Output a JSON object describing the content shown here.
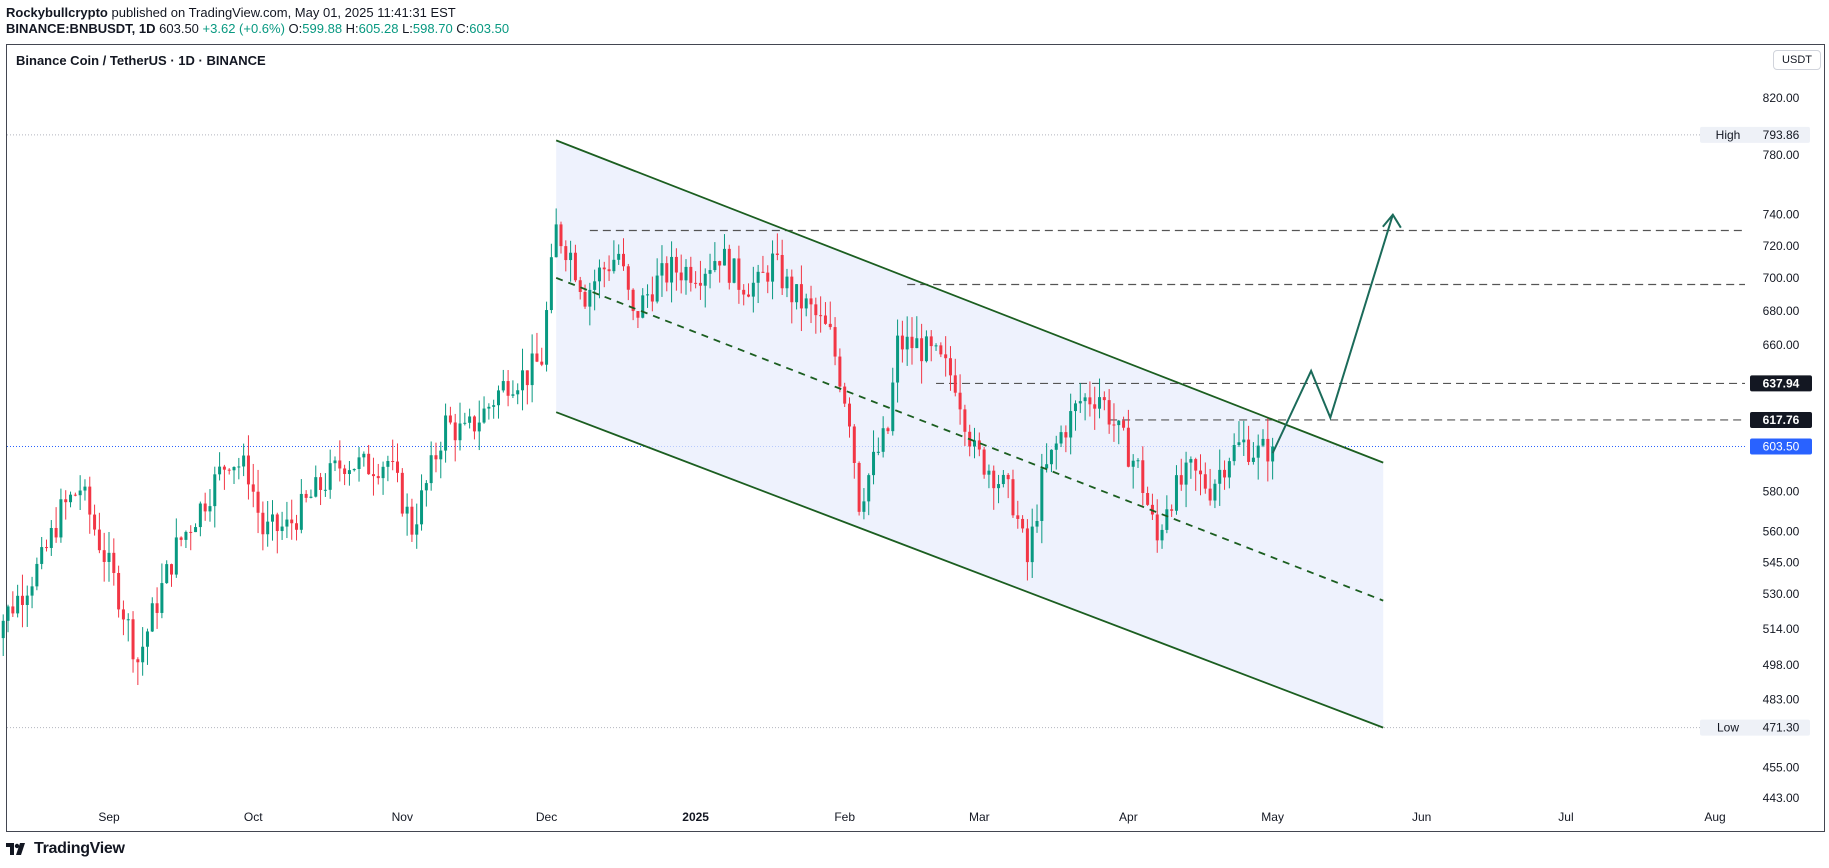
{
  "header": {
    "author": "Rockybullcrypto",
    "published_text": "published on TradingView.com, May 01, 2025 11:41:31 EST",
    "symbol_line": "BINANCE:BNBUSDT, 1D",
    "last": "603.50",
    "change": "+3.62 (+0.6%)",
    "ohlc": {
      "O": "599.88",
      "H": "605.28",
      "L": "598.70",
      "C": "603.50"
    }
  },
  "chart_title": "Binance Coin / TetherUS · 1D · BINANCE",
  "unit_badge": "USDT",
  "footer": {
    "brand": "TradingView"
  },
  "colors": {
    "up": "#089981",
    "down": "#f23645",
    "channel": "#1b5e20",
    "arrow": "#1b6b5a",
    "fill": "#e8eefc",
    "price": "#2962ff"
  },
  "chart_data": {
    "type": "candlestick",
    "y_axis": {
      "scale": "log",
      "min": 435,
      "max": 840,
      "ticks": [
        "820.00",
        "780.00",
        "740.00",
        "720.00",
        "700.00",
        "680.00",
        "660.00",
        "637.94",
        "617.76",
        "603.50",
        "580.00",
        "560.00",
        "545.00",
        "530.00",
        "514.00",
        "498.00",
        "483.00",
        "471.30",
        "455.00",
        "443.00"
      ]
    },
    "x_axis": {
      "ticks": [
        {
          "label": "Sep",
          "date": "2024-09-01"
        },
        {
          "label": "Oct",
          "date": "2024-10-01"
        },
        {
          "label": "Nov",
          "date": "2024-11-01"
        },
        {
          "label": "Dec",
          "date": "2024-12-01"
        },
        {
          "label": "2025",
          "date": "2025-01-01"
        },
        {
          "label": "Feb",
          "date": "2025-02-01"
        },
        {
          "label": "Mar",
          "date": "2025-03-01"
        },
        {
          "label": "Apr",
          "date": "2025-04-01"
        },
        {
          "label": "May",
          "date": "2025-05-01"
        },
        {
          "label": "Jun",
          "date": "2025-06-01"
        },
        {
          "label": "Jul",
          "date": "2025-07-01"
        },
        {
          "label": "Aug",
          "date": "2025-08-01"
        }
      ]
    },
    "series_points": [
      [
        "2024-08-07",
        510
      ],
      [
        "2024-08-12",
        525
      ],
      [
        "2024-08-18",
        545
      ],
      [
        "2024-08-22",
        570
      ],
      [
        "2024-08-26",
        582
      ],
      [
        "2024-08-30",
        555
      ],
      [
        "2024-09-03",
        530
      ],
      [
        "2024-09-07",
        500
      ],
      [
        "2024-09-10",
        520
      ],
      [
        "2024-09-15",
        552
      ],
      [
        "2024-09-20",
        572
      ],
      [
        "2024-09-26",
        598
      ],
      [
        "2024-09-30",
        590
      ],
      [
        "2024-10-03",
        560
      ],
      [
        "2024-10-08",
        562
      ],
      [
        "2024-10-14",
        580
      ],
      [
        "2024-10-20",
        596
      ],
      [
        "2024-10-24",
        593
      ],
      [
        "2024-10-29",
        596
      ],
      [
        "2024-11-03",
        562
      ],
      [
        "2024-11-06",
        583
      ],
      [
        "2024-11-10",
        616
      ],
      [
        "2024-11-14",
        610
      ],
      [
        "2024-11-18",
        622
      ],
      [
        "2024-11-23",
        640
      ],
      [
        "2024-11-27",
        643
      ],
      [
        "2024-11-30",
        652
      ],
      [
        "2024-12-03",
        730
      ],
      [
        "2024-12-06",
        715
      ],
      [
        "2024-12-09",
        690
      ],
      [
        "2024-12-12",
        703
      ],
      [
        "2024-12-16",
        715
      ],
      [
        "2024-12-19",
        675
      ],
      [
        "2024-12-23",
        695
      ],
      [
        "2024-12-27",
        705
      ],
      [
        "2025-01-02",
        705
      ],
      [
        "2025-01-06",
        715
      ],
      [
        "2025-01-10",
        698
      ],
      [
        "2025-01-14",
        695
      ],
      [
        "2025-01-17",
        710
      ],
      [
        "2025-01-21",
        690
      ],
      [
        "2025-01-25",
        680
      ],
      [
        "2025-01-29",
        665
      ],
      [
        "2025-02-02",
        620
      ],
      [
        "2025-02-04",
        575
      ],
      [
        "2025-02-07",
        595
      ],
      [
        "2025-02-10",
        612
      ],
      [
        "2025-02-12",
        660
      ],
      [
        "2025-02-16",
        660
      ],
      [
        "2025-02-20",
        652
      ],
      [
        "2025-02-24",
        640
      ],
      [
        "2025-02-28",
        600
      ],
      [
        "2025-03-04",
        590
      ],
      [
        "2025-03-08",
        575
      ],
      [
        "2025-03-11",
        545
      ],
      [
        "2025-03-14",
        585
      ],
      [
        "2025-03-18",
        610
      ],
      [
        "2025-03-22",
        628
      ],
      [
        "2025-03-26",
        632
      ],
      [
        "2025-03-30",
        610
      ],
      [
        "2025-04-03",
        592
      ],
      [
        "2025-04-07",
        555
      ],
      [
        "2025-04-09",
        575
      ],
      [
        "2025-04-14",
        590
      ],
      [
        "2025-04-18",
        582
      ],
      [
        "2025-04-22",
        600
      ],
      [
        "2025-04-25",
        605
      ],
      [
        "2025-04-28",
        600
      ],
      [
        "2025-05-01",
        603.5
      ]
    ],
    "channel": {
      "upper": [
        [
          "2024-12-03",
          790
        ],
        [
          "2025-05-24",
          595
        ]
      ],
      "lower": [
        [
          "2024-12-03",
          622
        ],
        [
          "2025-05-24",
          471.3
        ]
      ],
      "mid": [
        [
          "2024-12-03",
          700
        ],
        [
          "2025-05-24",
          527
        ]
      ]
    },
    "projection": [
      [
        "2025-05-01",
        600
      ],
      [
        "2025-05-09",
        645
      ],
      [
        "2025-05-13",
        619
      ],
      [
        "2025-05-26",
        740
      ]
    ],
    "levels": [
      {
        "value": 729.8,
        "label": "729.80",
        "start": "2024-12-10"
      },
      {
        "value": 695.95,
        "label": "695.95",
        "start": "2025-02-14"
      },
      {
        "value": 637.94,
        "label": "637.94",
        "start": "2025-02-20"
      },
      {
        "value": 617.76,
        "label": "617.76",
        "start": "2025-03-28"
      }
    ],
    "high": {
      "label": "High",
      "value": 793.86,
      "text": "793.86"
    },
    "low": {
      "label": "Low",
      "value": 471.3,
      "text": "471.30"
    },
    "last_price": {
      "value": 603.5,
      "text": "603.50"
    }
  }
}
